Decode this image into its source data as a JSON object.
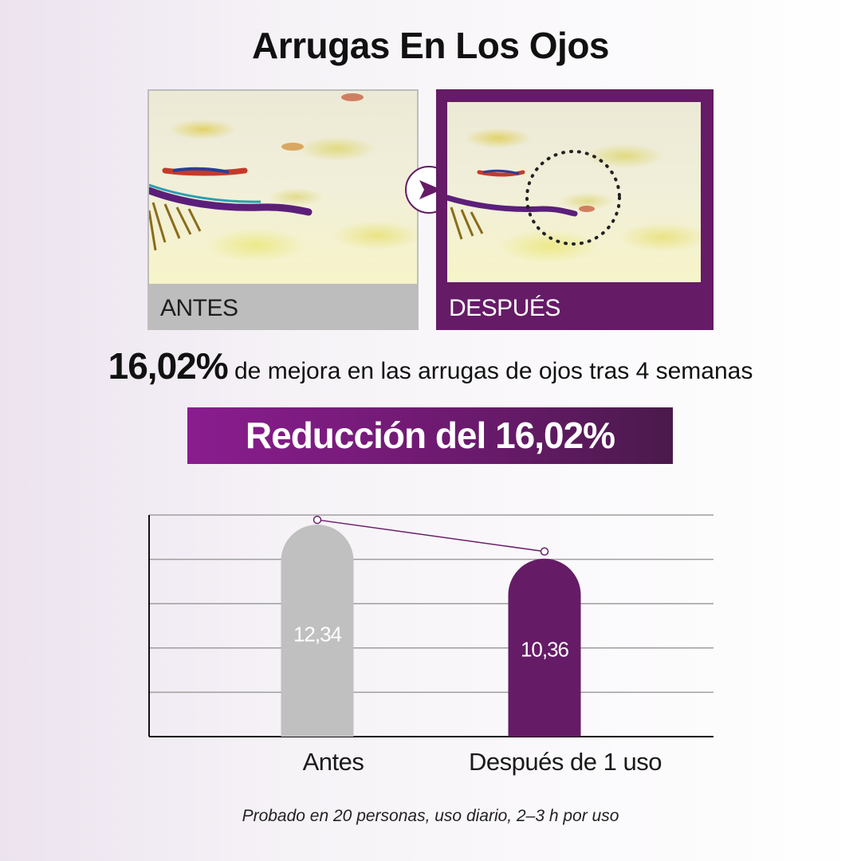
{
  "title": "Arrugas En Los Ojos",
  "panels": {
    "before_label": "ANTES",
    "after_label": "DESPUÉS"
  },
  "stat": {
    "value": "16,02%",
    "text": "de mejora en las arrugas de ojos tras 4 semanas"
  },
  "banner": "Reducción del 16,02%",
  "footnote": "Probado en 20 personas, uso diario, 2–3 h por uso",
  "colors": {
    "accent": "#651b66",
    "before_bar": "#c0c0c0",
    "after_bar": "#651b66"
  },
  "chart_data": {
    "type": "bar",
    "categories": [
      "Antes",
      "Después de 1 uso"
    ],
    "values": [
      12.34,
      10.36
    ],
    "value_labels": [
      "12,34",
      "10,36"
    ],
    "ylim": [
      0,
      12.9
    ],
    "grid": true,
    "trend_line": true
  }
}
